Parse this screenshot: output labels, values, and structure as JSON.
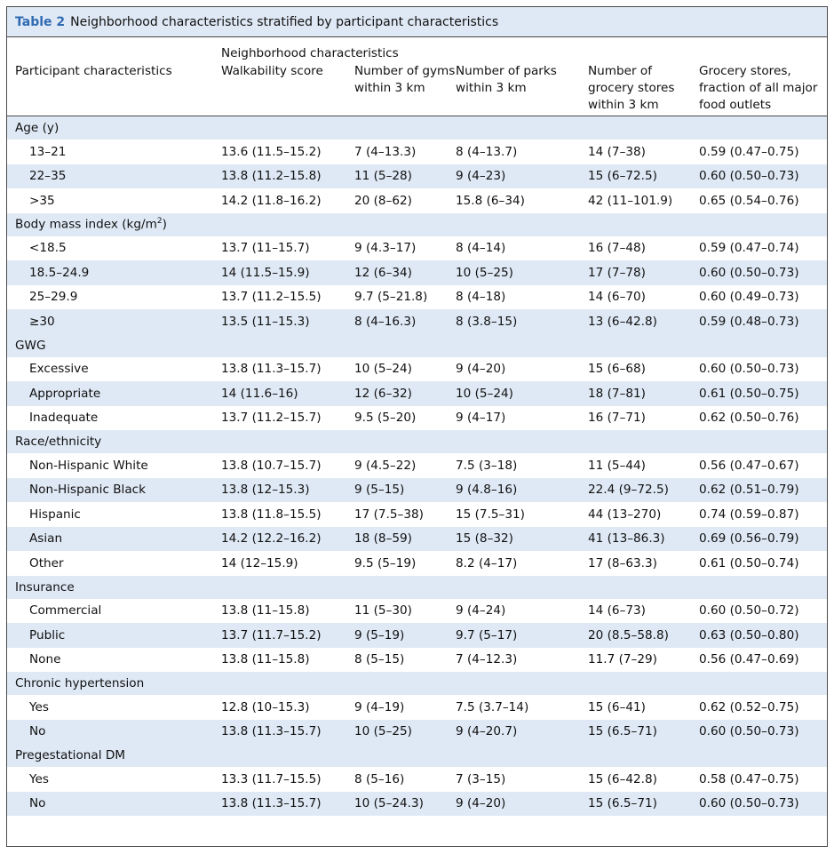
{
  "caption": {
    "label": "Table 2",
    "text": "Neighborhood characteristics stratified by participant characteristics"
  },
  "header": {
    "super": "Neighborhood characteristics",
    "col0": "Participant characteristics",
    "col1": "Walkability score",
    "col2": "Number of gyms within 3 km",
    "col3": "Number of parks within 3 km",
    "col4": "Number of grocery stores within 3 km",
    "col5": "Grocery stores, fraction of all major food outlets"
  },
  "groups": [
    {
      "label": "Age (y)",
      "rows": [
        {
          "label": "13–21",
          "v": [
            "13.6 (11.5–15.2)",
            "7 (4–13.3)",
            "8 (4–13.7)",
            "14 (7–38)",
            "0.59 (0.47–0.75)"
          ]
        },
        {
          "label": "22–35",
          "v": [
            "13.8 (11.2–15.8)",
            "11 (5–28)",
            "9 (4–23)",
            "15 (6–72.5)",
            "0.60 (0.50–0.73)"
          ]
        },
        {
          "label": ">35",
          "v": [
            "14.2 (11.8–16.2)",
            "20 (8–62)",
            "15.8 (6–34)",
            "42 (11–101.9)",
            "0.65 (0.54–0.76)"
          ]
        }
      ]
    },
    {
      "label": "Body mass index (kg/m",
      "label_sup": "2",
      "label_end": ")",
      "rows": [
        {
          "label": "<18.5",
          "v": [
            "13.7 (11–15.7)",
            "9 (4.3–17)",
            "8 (4–14)",
            "16 (7–48)",
            "0.59 (0.47–0.74)"
          ]
        },
        {
          "label": "18.5–24.9",
          "v": [
            "14 (11.5–15.9)",
            "12 (6–34)",
            "10 (5–25)",
            "17 (7–78)",
            "0.60 (0.50–0.73)"
          ]
        },
        {
          "label": "25–29.9",
          "v": [
            "13.7 (11.2–15.5)",
            "9.7 (5–21.8)",
            "8 (4–18)",
            "14 (6–70)",
            "0.60 (0.49–0.73)"
          ]
        },
        {
          "label": "≥30",
          "v": [
            "13.5 (11–15.3)",
            "8 (4–16.3)",
            "8 (3.8–15)",
            "13 (6–42.8)",
            "0.59 (0.48–0.73)"
          ]
        }
      ]
    },
    {
      "label": "GWG",
      "rows": [
        {
          "label": "Excessive",
          "v": [
            "13.8 (11.3–15.7)",
            "10 (5–24)",
            "9 (4–20)",
            "15 (6–68)",
            "0.60 (0.50–0.73)"
          ]
        },
        {
          "label": "Appropriate",
          "v": [
            "14 (11.6–16)",
            "12 (6–32)",
            "10 (5–24)",
            "18 (7–81)",
            "0.61 (0.50–0.75)"
          ]
        },
        {
          "label": "Inadequate",
          "v": [
            "13.7 (11.2–15.7)",
            "9.5 (5–20)",
            "9 (4–17)",
            "16 (7–71)",
            "0.62 (0.50–0.76)"
          ]
        }
      ]
    },
    {
      "label": "Race/ethnicity",
      "rows": [
        {
          "label": "Non-Hispanic White",
          "v": [
            "13.8 (10.7–15.7)",
            "9 (4.5–22)",
            "7.5 (3–18)",
            "11 (5–44)",
            "0.56 (0.47–0.67)"
          ]
        },
        {
          "label": "Non-Hispanic Black",
          "v": [
            "13.8 (12–15.3)",
            "9 (5–15)",
            "9 (4.8–16)",
            "22.4 (9–72.5)",
            "0.62 (0.51–0.79)"
          ]
        },
        {
          "label": "Hispanic",
          "v": [
            "13.8 (11.8–15.5)",
            "17 (7.5–38)",
            "15 (7.5–31)",
            "44 (13–270)",
            "0.74 (0.59–0.87)"
          ]
        },
        {
          "label": "Asian",
          "v": [
            "14.2 (12.2–16.2)",
            "18 (8–59)",
            "15 (8–32)",
            "41 (13–86.3)",
            "0.69 (0.56–0.79)"
          ]
        },
        {
          "label": "Other",
          "v": [
            "14 (12–15.9)",
            "9.5 (5–19)",
            "8.2 (4–17)",
            "17 (8–63.3)",
            "0.61 (0.50–0.74)"
          ]
        }
      ]
    },
    {
      "label": "Insurance",
      "rows": [
        {
          "label": "Commercial",
          "v": [
            "13.8 (11–15.8)",
            "11 (5–30)",
            "9 (4–24)",
            "14 (6–73)",
            "0.60 (0.50–0.72)"
          ]
        },
        {
          "label": "Public",
          "v": [
            "13.7 (11.7–15.2)",
            "9 (5–19)",
            "9.7 (5–17)",
            "20 (8.5–58.8)",
            "0.63 (0.50–0.80)"
          ]
        },
        {
          "label": "None",
          "v": [
            "13.8 (11–15.8)",
            "8 (5–15)",
            "7 (4–12.3)",
            "11.7 (7–29)",
            "0.56 (0.47–0.69)"
          ]
        }
      ]
    },
    {
      "label": "Chronic hypertension",
      "rows": [
        {
          "label": "Yes",
          "v": [
            "12.8 (10–15.3)",
            "9 (4–19)",
            "7.5 (3.7–14)",
            "15 (6–41)",
            "0.62 (0.52–0.75)"
          ]
        },
        {
          "label": "No",
          "v": [
            "13.8 (11.3–15.7)",
            "10 (5–25)",
            "9 (4–20.7)",
            "15 (6.5–71)",
            "0.60 (0.50–0.73)"
          ]
        }
      ]
    },
    {
      "label": "Pregestational DM",
      "rows": [
        {
          "label": "Yes",
          "v": [
            "13.3 (11.7–15.5)",
            "8 (5–16)",
            "7 (3–15)",
            "15 (6–42.8)",
            "0.58 (0.47–0.75)"
          ]
        },
        {
          "label": "No",
          "v": [
            "13.8 (11.3–15.7)",
            "10 (5–24.3)",
            "9 (4–20)",
            "15 (6.5–71)",
            "0.60 (0.50–0.73)"
          ]
        }
      ]
    }
  ]
}
